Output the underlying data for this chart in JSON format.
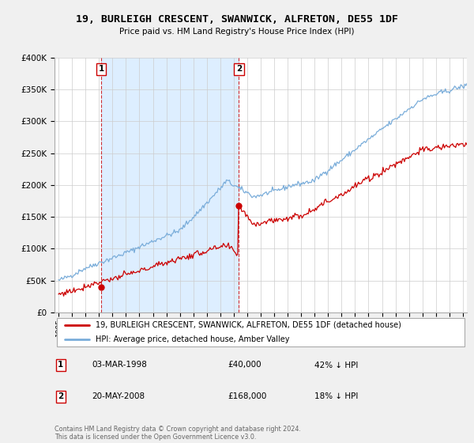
{
  "title": "19, BURLEIGH CRESCENT, SWANWICK, ALFRETON, DE55 1DF",
  "subtitle": "Price paid vs. HM Land Registry's House Price Index (HPI)",
  "legend_line1": "19, BURLEIGH CRESCENT, SWANWICK, ALFRETON, DE55 1DF (detached house)",
  "legend_line2": "HPI: Average price, detached house, Amber Valley",
  "annotation1_date": "03-MAR-1998",
  "annotation1_price": "£40,000",
  "annotation1_hpi": "42% ↓ HPI",
  "annotation2_date": "20-MAY-2008",
  "annotation2_price": "£168,000",
  "annotation2_hpi": "18% ↓ HPI",
  "footer": "Contains HM Land Registry data © Crown copyright and database right 2024.\nThis data is licensed under the Open Government Licence v3.0.",
  "sale1_x": 1998.17,
  "sale1_y": 40000,
  "sale2_x": 2008.38,
  "sale2_y": 168000,
  "red_color": "#cc0000",
  "blue_color": "#7aadda",
  "shade_color": "#ddeeff",
  "ylim": [
    0,
    400000
  ],
  "xlim_start": 1994.7,
  "xlim_end": 2025.3,
  "background_color": "#f0f0f0",
  "plot_bg_color": "#ffffff"
}
